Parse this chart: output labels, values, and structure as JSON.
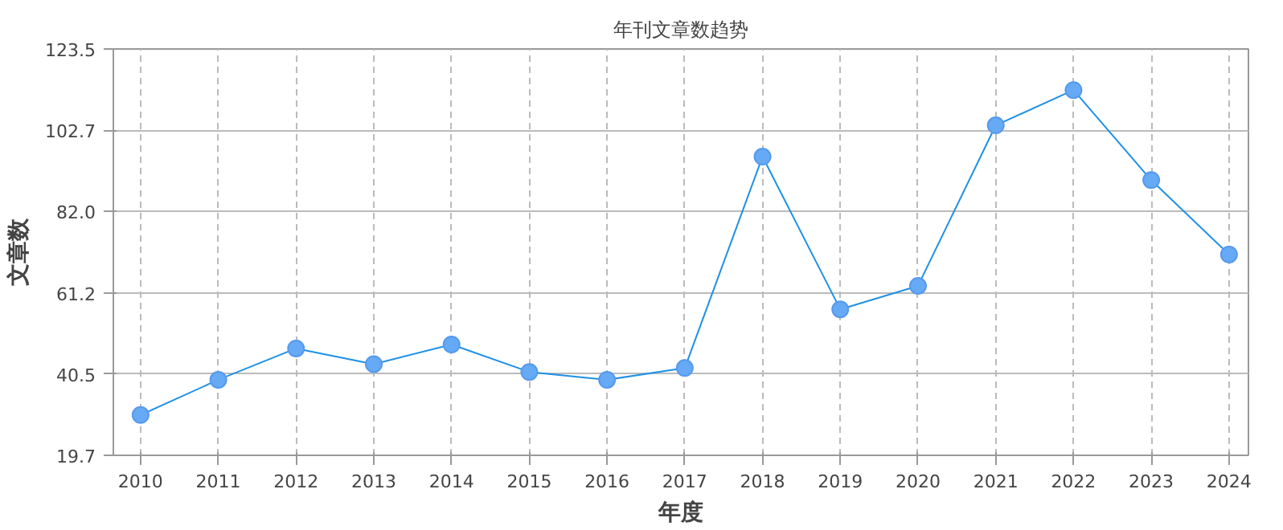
{
  "chart_data": {
    "type": "line",
    "title": "年刊文章数趋势",
    "xlabel": "年度",
    "ylabel": "文章数",
    "categories": [
      "2010",
      "2011",
      "2012",
      "2013",
      "2014",
      "2015",
      "2016",
      "2017",
      "2018",
      "2019",
      "2020",
      "2021",
      "2022",
      "2023",
      "2024"
    ],
    "series": [
      {
        "color": "#1e90e6",
        "values": [
          30,
          39,
          47,
          43,
          48,
          41,
          39,
          42,
          96,
          57,
          63,
          104,
          113,
          90,
          71
        ]
      }
    ],
    "ylim": [
      19.7,
      123.5
    ],
    "yticks": [
      19.7,
      40.5,
      61.2,
      {
        "value": 82.0,
        "label": "82.0"
      },
      102.7,
      123.5
    ],
    "grid": true,
    "marker": "circle",
    "line_style": "solid"
  }
}
